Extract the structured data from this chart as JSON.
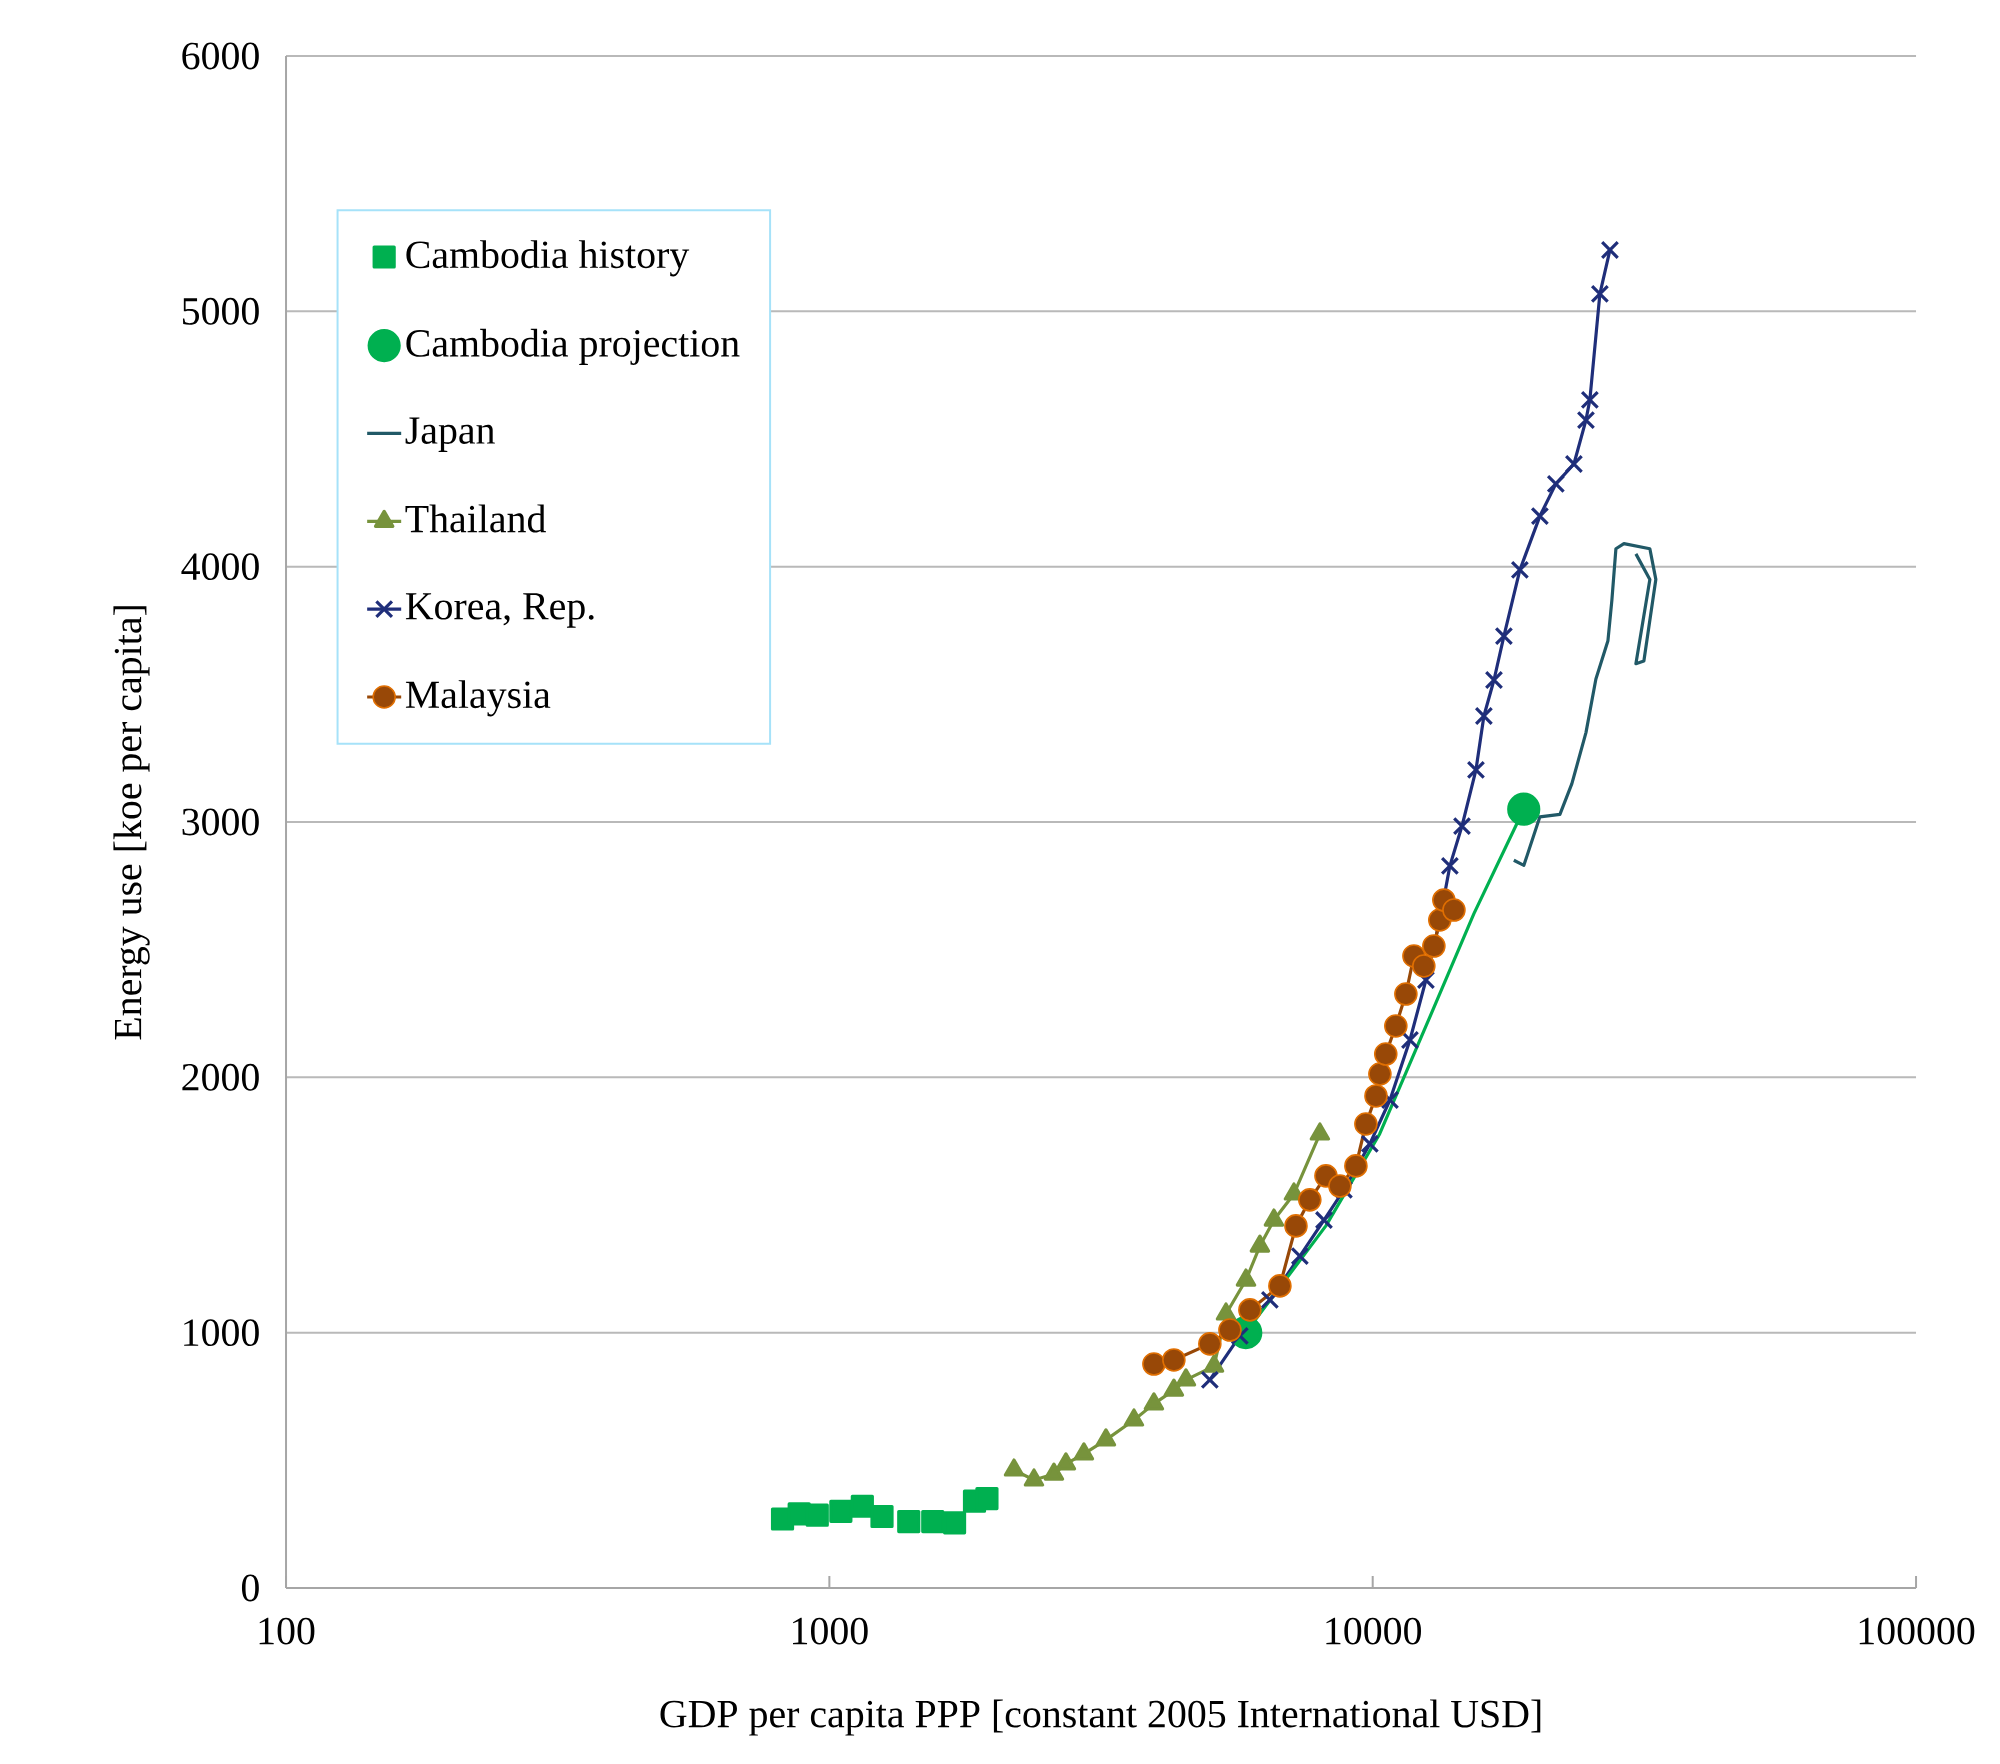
{
  "chart_data": {
    "type": "line",
    "xlabel": "GDP per capita PPP [constant 2005 International USD]",
    "ylabel": "Energy use [koe per capita]",
    "log": "x",
    "grid": "y",
    "legend": "top left",
    "xlim": [
      100,
      100000
    ],
    "xticks": [
      100,
      1000,
      10000,
      100000
    ],
    "ylim": [
      0,
      6000
    ],
    "yticks": [
      0,
      1000,
      2000,
      3000,
      4000,
      5000,
      6000
    ],
    "series": [
      {
        "name": "Cambodia history",
        "type": "scatter",
        "marker": "square",
        "color": "#00b050",
        "x": [
          820,
          880,
          950,
          1050,
          1150,
          1250,
          1400,
          1550,
          1700,
          1850,
          1950
        ],
        "values": [
          270,
          290,
          285,
          300,
          320,
          280,
          260,
          260,
          255,
          340,
          350
        ]
      },
      {
        "name": "Cambodia projection",
        "type": "scatter",
        "marker": "circle",
        "color": "#00b050",
        "x": [
          5840,
          18970
        ],
        "values": [
          1000,
          3050
        ]
      },
      {
        "name": "Japan",
        "color": "#215967",
        "x": [
          18190,
          18980,
          20310,
          22110,
          23260,
          24690,
          25750,
          27100,
          27560,
          28030,
          29000,
          32370,
          33200,
          31560,
          30510,
          32370,
          30510
        ],
        "values": [
          2850,
          2830,
          3020,
          3030,
          3150,
          3350,
          3560,
          3710,
          3870,
          4070,
          4090,
          4070,
          3950,
          3630,
          3620,
          3950,
          4050
        ]
      },
      {
        "name": "Thailand",
        "marker": "triangle",
        "color": "#77933c",
        "x": [
          2187,
          2380,
          2590,
          2725,
          2941,
          3229,
          3636,
          3957,
          4306,
          4532,
          5104,
          5370,
          5845,
          6200,
          6580,
          7162,
          7996
        ],
        "values": [
          462,
          423,
          446,
          486,
          525,
          580,
          658,
          721,
          775,
          815,
          869,
          1073,
          1206,
          1339,
          1441,
          1543,
          1778
        ]
      },
      {
        "name": "Korea, Rep.",
        "marker": "cross",
        "color": "#1f2e7a",
        "x": [
          5015,
          5695,
          6468,
          7345,
          8134,
          8852,
          9880,
          10760,
          11710,
          12530,
          13290,
          13870,
          14600,
          15490,
          16020,
          16720,
          17440,
          18660,
          20310,
          21730,
          23460,
          24690,
          25100,
          26190,
          27330
        ],
        "values": [
          815,
          987,
          1128,
          1300,
          1441,
          1559,
          1739,
          1911,
          2146,
          2381,
          2616,
          2828,
          2984,
          3204,
          3415,
          3556,
          3728,
          3987,
          4198,
          4324,
          4402,
          4574,
          4653,
          5068,
          5240
        ]
      },
      {
        "name": "Malaysia",
        "marker": "circle",
        "color": "#984807",
        "x": [
          3957,
          4306,
          5015,
          5461,
          5943,
          6749,
          7224,
          7661,
          8203,
          8703,
          9313,
          9716,
          10140,
          10310,
          10570,
          11030,
          11510,
          11910,
          12420,
          12960,
          13290,
          13520,
          14110
        ],
        "values": [
          877,
          893,
          956,
          1010,
          1089,
          1183,
          1418,
          1520,
          1614,
          1574,
          1653,
          1817,
          1927,
          2013,
          2091,
          2201,
          2326,
          2475,
          2436,
          2514,
          2616,
          2694,
          2655
        ]
      },
      {
        "color": "#00b050",
        "x": [
          5840,
          8200,
          10300,
          12530,
          15350,
          18970
        ],
        "values": [
          1000,
          1418,
          1778,
          2200,
          2640,
          3050
        ]
      }
    ]
  }
}
